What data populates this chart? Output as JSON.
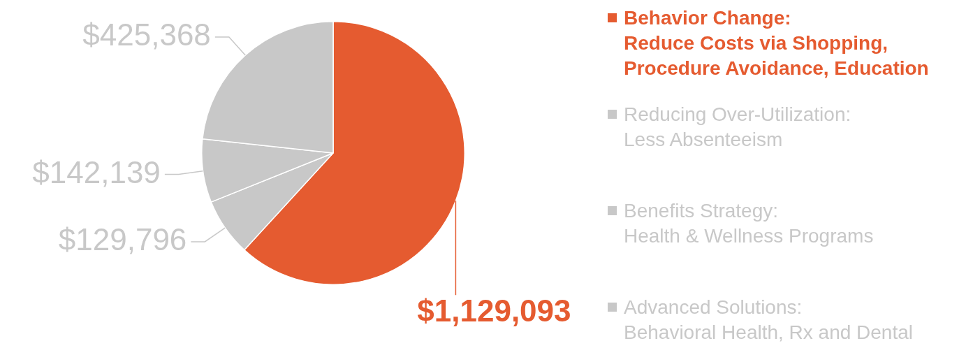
{
  "chart_data": {
    "type": "pie",
    "categories": [
      "Behavior Change:\nReduce Costs via Shopping,\nProcedure Avoidance, Education",
      "Reducing Over-Utilization:\nLess Absenteeism",
      "Benefits Strategy:\nHealth & Wellness Programs",
      "Advanced Solutions:\nBehavioral Health, Rx and Dental"
    ],
    "values": [
      1129093,
      129796,
      142139,
      425368
    ],
    "value_labels": [
      "$1,129,093",
      "$129,796",
      "$142,139",
      "$425,368"
    ],
    "colors": [
      "#e55b30",
      "#c8c8c8",
      "#c8c8c8",
      "#c8c8c8"
    ],
    "legend": "right"
  }
}
